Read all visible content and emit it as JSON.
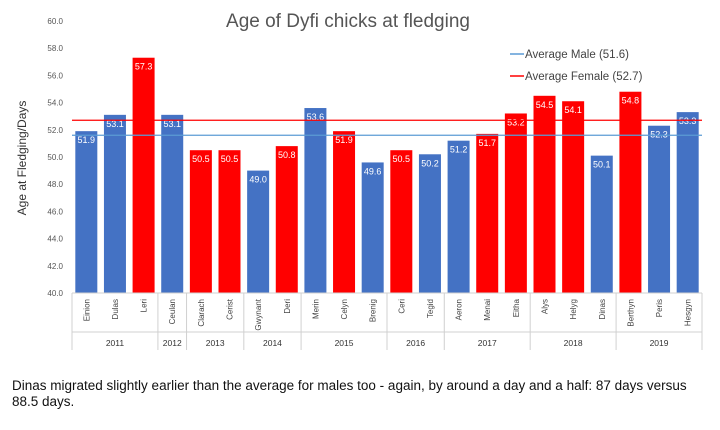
{
  "chart_data": {
    "type": "bar",
    "title": "Age of Dyfi chicks at fledging",
    "ylabel": "Age at Fledging/Days",
    "xlabel": "",
    "ylim": [
      40.0,
      60.0
    ],
    "y_ticks": [
      "40.0",
      "42.0",
      "44.0",
      "46.0",
      "48.0",
      "50.0",
      "52.0",
      "54.0",
      "56.0",
      "58.0",
      "60.0"
    ],
    "grid": false,
    "legend_position": "top-right",
    "bars": [
      {
        "name": "Einion",
        "year": "2011",
        "value": 51.9,
        "sex": "male",
        "label": "51.9"
      },
      {
        "name": "Dulas",
        "year": "2011",
        "value": 53.1,
        "sex": "male",
        "label": "53.1"
      },
      {
        "name": "Leri",
        "year": "2011",
        "value": 57.3,
        "sex": "female",
        "label": "57.3"
      },
      {
        "name": "Ceulan",
        "year": "2012",
        "value": 53.1,
        "sex": "male",
        "label": "53.1"
      },
      {
        "name": "Clarach",
        "year": "2013",
        "value": 50.5,
        "sex": "female",
        "label": "50.5"
      },
      {
        "name": "Cerist",
        "year": "2013",
        "value": 50.5,
        "sex": "female",
        "label": "50.5"
      },
      {
        "name": "Gwynant",
        "year": "2014",
        "value": 49.0,
        "sex": "male",
        "label": "49.0"
      },
      {
        "name": "Deri",
        "year": "2014",
        "value": 50.8,
        "sex": "female",
        "label": "50.8"
      },
      {
        "name": "Merin",
        "year": "2015",
        "value": 53.6,
        "sex": "male",
        "label": "53.6"
      },
      {
        "name": "Celyn",
        "year": "2015",
        "value": 51.9,
        "sex": "female",
        "label": "51.9"
      },
      {
        "name": "Brenig",
        "year": "2015",
        "value": 49.6,
        "sex": "male",
        "label": "49.6"
      },
      {
        "name": "Ceri",
        "year": "2016",
        "value": 50.5,
        "sex": "female",
        "label": "50.5"
      },
      {
        "name": "Tegid",
        "year": "2016",
        "value": 50.2,
        "sex": "male",
        "label": "50.2"
      },
      {
        "name": "Aeron",
        "year": "2017",
        "value": 51.2,
        "sex": "male",
        "label": "51.2"
      },
      {
        "name": "Menai",
        "year": "2017",
        "value": 51.7,
        "sex": "female",
        "label": "51.7"
      },
      {
        "name": "Eitha",
        "year": "2017",
        "value": 53.2,
        "sex": "female",
        "label": "53.2"
      },
      {
        "name": "Alys",
        "year": "2018",
        "value": 54.5,
        "sex": "female",
        "label": "54.5"
      },
      {
        "name": "Helyg",
        "year": "2018",
        "value": 54.1,
        "sex": "female",
        "label": "54.1"
      },
      {
        "name": "Dinas",
        "year": "2018",
        "value": 50.1,
        "sex": "male",
        "label": "50.1"
      },
      {
        "name": "Berthyn",
        "year": "2019",
        "value": 54.8,
        "sex": "female",
        "label": "54.8"
      },
      {
        "name": "Peris",
        "year": "2019",
        "value": 52.3,
        "sex": "male",
        "label": "52.3"
      },
      {
        "name": "Hesgyn",
        "year": "2019",
        "value": 53.3,
        "sex": "male",
        "label": "53.3"
      }
    ],
    "years": [
      "2011",
      "2012",
      "2013",
      "2014",
      "2015",
      "2016",
      "2017",
      "2018",
      "2019"
    ],
    "reference_lines": [
      {
        "name": "Average Male (51.6)",
        "value": 51.6,
        "color": "#5b9bd5"
      },
      {
        "name": "Average Female (52.7)",
        "value": 52.7,
        "color": "#ff0000"
      }
    ],
    "colors": {
      "male": "#4472c4",
      "female": "#ff0000"
    }
  },
  "caption": "Dinas migrated slightly earlier than the average for males too - again, by around a day and a half: 87 days versus 88.5 days."
}
